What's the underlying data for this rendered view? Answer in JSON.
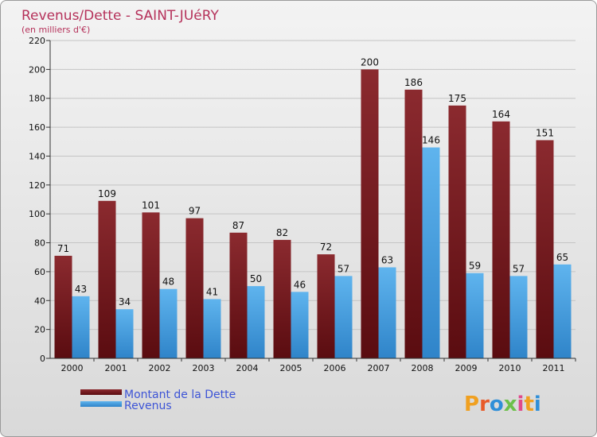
{
  "chart_data": {
    "type": "bar",
    "title": "Revenus/Dette - SAINT-JUéRY",
    "subtitle": "(en milliers d'€)",
    "categories": [
      "2000",
      "2001",
      "2002",
      "2003",
      "2004",
      "2005",
      "2006",
      "2007",
      "2008",
      "2009",
      "2010",
      "2011"
    ],
    "series": [
      {
        "name": "Montant de la Dette",
        "values": [
          71,
          109,
          101,
          97,
          87,
          82,
          72,
          200,
          186,
          175,
          164,
          151
        ],
        "color": "#7a1a1e"
      },
      {
        "name": "Revenus",
        "values": [
          43,
          34,
          48,
          41,
          50,
          46,
          57,
          63,
          146,
          59,
          57,
          65
        ],
        "color": "#4aa3e6"
      }
    ],
    "ylim": [
      0,
      220
    ],
    "yticks": [
      0,
      20,
      40,
      60,
      80,
      100,
      120,
      140,
      160,
      180,
      200,
      220
    ],
    "grid": true,
    "legend_position": "bottom-left"
  },
  "logo": {
    "text": "Proxiti"
  }
}
